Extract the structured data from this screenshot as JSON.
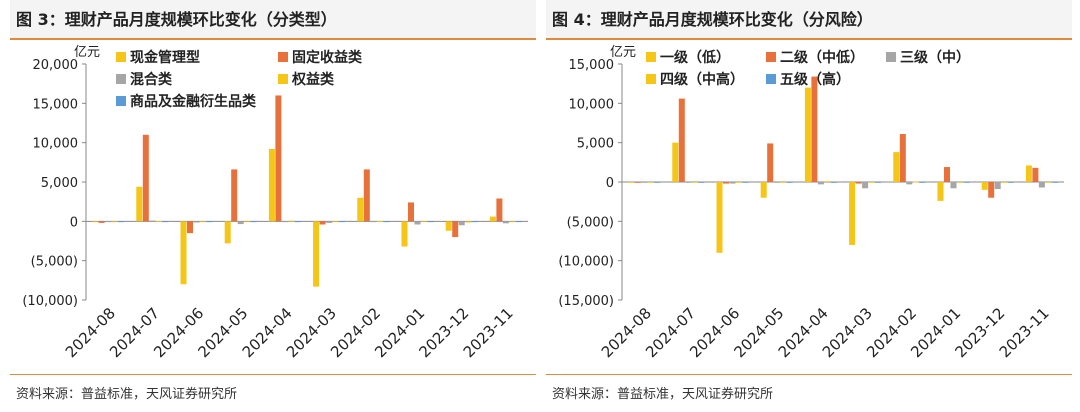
{
  "charts": [
    {
      "title": "图 3：理财产品月度规模环比变化（分类型）",
      "source": "资料来源：普益标准，天风证券研究所",
      "chart_data": {
        "type": "bar",
        "unit": "亿元",
        "categories": [
          "2024-08",
          "2024-07",
          "2024-06",
          "2024-05",
          "2024-04",
          "2024-03",
          "2024-02",
          "2024-01",
          "2023-12",
          "2023-11"
        ],
        "ylim": [
          -10000,
          20000
        ],
        "yticks": [
          -10000,
          -5000,
          0,
          5000,
          10000,
          15000,
          20000
        ],
        "ytick_labels": [
          "(10,000)",
          "(5,000)",
          "0",
          "5,000",
          "10,000",
          "15,000",
          "20,000"
        ],
        "legend_columns": 2,
        "series": [
          {
            "name": "现金管理型",
            "color": "#f5c518",
            "values": [
              0,
              4400,
              -8000,
              -2800,
              9200,
              -8300,
              3000,
              -3200,
              -1200,
              600
            ]
          },
          {
            "name": "固定收益类",
            "color": "#e8703a",
            "values": [
              -200,
              11000,
              -1500,
              6600,
              16000,
              -400,
              6600,
              2400,
              -2000,
              2900
            ]
          },
          {
            "name": "混合类",
            "color": "#a6a6a6",
            "values": [
              0,
              100,
              -150,
              -350,
              0,
              -200,
              0,
              -400,
              -500,
              -250
            ]
          },
          {
            "name": "权益类",
            "color": "#f5c518",
            "values": [
              0,
              50,
              -30,
              -50,
              80,
              -50,
              50,
              -100,
              -150,
              -50
            ]
          },
          {
            "name": "商品及金融衍生品类",
            "color": "#5b9bd5",
            "values": [
              0,
              0,
              0,
              0,
              0,
              0,
              0,
              0,
              0,
              0
            ]
          }
        ]
      }
    },
    {
      "title": "图 4：理财产品月度规模环比变化（分风险）",
      "source": "资料来源：普益标准，天风证券研究所",
      "chart_data": {
        "type": "bar",
        "unit": "亿元",
        "categories": [
          "2024-08",
          "2024-07",
          "2024-06",
          "2024-05",
          "2024-04",
          "2024-03",
          "2024-02",
          "2024-01",
          "2023-12",
          "2023-11"
        ],
        "ylim": [
          -15000,
          15000
        ],
        "yticks": [
          -15000,
          -10000,
          -5000,
          0,
          5000,
          10000,
          15000
        ],
        "ytick_labels": [
          "(15,000)",
          "(10,000)",
          "(5,000)",
          "0",
          "5,000",
          "10,000",
          "15,000"
        ],
        "legend_columns": 3,
        "series": [
          {
            "name": "一级（低）",
            "color": "#f5c518",
            "values": [
              0,
              5000,
              -9000,
              -2000,
              12000,
              -8000,
              3800,
              -2400,
              -1000,
              2100
            ]
          },
          {
            "name": "二级（中低）",
            "color": "#e8703a",
            "values": [
              -100,
              10600,
              -200,
              4900,
              13400,
              -200,
              6100,
              1900,
              -2000,
              1800
            ]
          },
          {
            "name": "三级（中）",
            "color": "#a6a6a6",
            "values": [
              0,
              -100,
              -200,
              -100,
              -300,
              -800,
              -300,
              -800,
              -900,
              -700
            ]
          },
          {
            "name": "四级（中高）",
            "color": "#f5c518",
            "values": [
              0,
              0,
              -50,
              -50,
              100,
              -50,
              50,
              -100,
              -100,
              -50
            ]
          },
          {
            "name": "五级（高）",
            "color": "#5b9bd5",
            "values": [
              0,
              0,
              0,
              0,
              0,
              0,
              0,
              0,
              0,
              0
            ]
          }
        ]
      }
    }
  ]
}
